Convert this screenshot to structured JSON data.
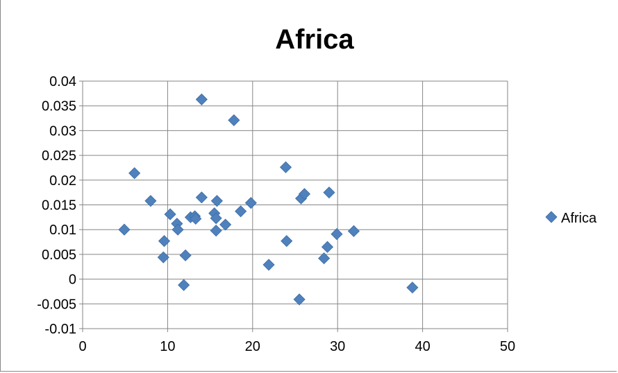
{
  "chart_data": {
    "type": "scatter",
    "title": "Africa",
    "xlabel": "",
    "ylabel": "",
    "xlim": [
      0,
      50
    ],
    "ylim": [
      -0.01,
      0.04
    ],
    "x_ticks": [
      "0",
      "10",
      "20",
      "30",
      "40",
      "50"
    ],
    "y_ticks": [
      "0.04",
      "0.035",
      "0.03",
      "0.025",
      "0.02",
      "0.015",
      "0.01",
      "0.005",
      "0",
      "-0.005",
      "-0.01"
    ],
    "grid": true,
    "legend": "right",
    "marker": "diamond",
    "colors": {
      "series": "#4f81bd",
      "grid": "#868686"
    },
    "series": [
      {
        "name": "Africa",
        "points": [
          [
            4.9,
            0.01
          ],
          [
            6.1,
            0.0214
          ],
          [
            8.0,
            0.0158
          ],
          [
            9.5,
            0.0044
          ],
          [
            9.6,
            0.0077
          ],
          [
            10.3,
            0.0131
          ],
          [
            11.1,
            0.0112
          ],
          [
            11.2,
            0.01
          ],
          [
            11.9,
            -0.0012
          ],
          [
            12.1,
            0.0048
          ],
          [
            12.7,
            0.0125
          ],
          [
            13.2,
            0.0127
          ],
          [
            13.3,
            0.0122
          ],
          [
            14.0,
            0.0165
          ],
          [
            14.0,
            0.0363
          ],
          [
            15.5,
            0.0133
          ],
          [
            15.7,
            0.0098
          ],
          [
            15.7,
            0.0123
          ],
          [
            15.8,
            0.0158
          ],
          [
            16.8,
            0.011
          ],
          [
            17.8,
            0.0321
          ],
          [
            18.6,
            0.0137
          ],
          [
            19.8,
            0.0154
          ],
          [
            21.9,
            0.0029
          ],
          [
            23.9,
            0.0226
          ],
          [
            24.0,
            0.0077
          ],
          [
            25.5,
            -0.0041
          ],
          [
            25.7,
            0.0163
          ],
          [
            26.1,
            0.0172
          ],
          [
            28.4,
            0.0042
          ],
          [
            28.8,
            0.0065
          ],
          [
            29.0,
            0.0175
          ],
          [
            29.9,
            0.0091
          ],
          [
            31.9,
            0.0097
          ],
          [
            38.8,
            -0.0017
          ]
        ]
      }
    ]
  }
}
